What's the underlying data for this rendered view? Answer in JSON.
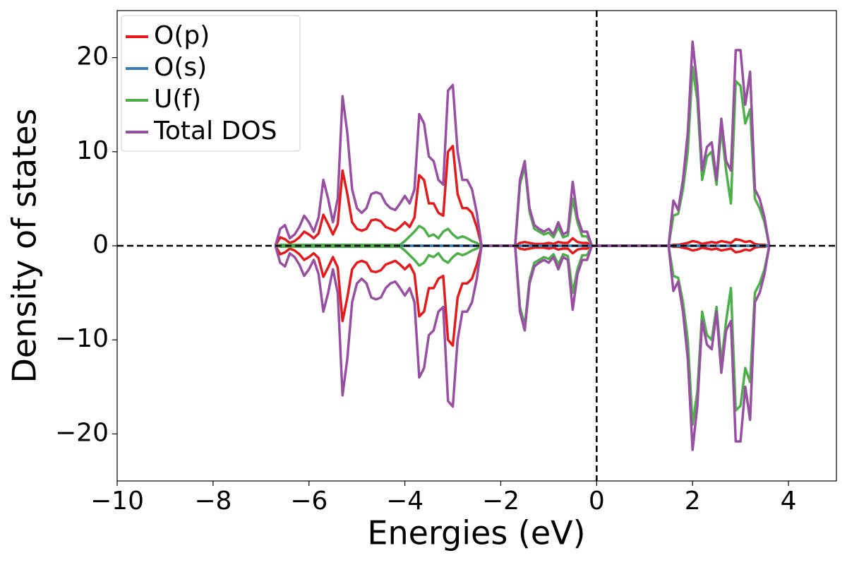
{
  "chart_data": {
    "type": "line",
    "xlabel": "Energies (eV)",
    "ylabel": "Density of states",
    "xlim": [
      -10,
      5
    ],
    "ylim": [
      -25,
      25
    ],
    "xticks": [
      {
        "value": -10,
        "label": "−10"
      },
      {
        "value": -8,
        "label": "−8"
      },
      {
        "value": -6,
        "label": "−6"
      },
      {
        "value": -4,
        "label": "−4"
      },
      {
        "value": -2,
        "label": "−2"
      },
      0,
      2,
      4
    ],
    "yticks": [
      {
        "value": -20,
        "label": "−20"
      },
      {
        "value": -10,
        "label": "−10"
      },
      0,
      10,
      20
    ],
    "vlines": [
      0
    ],
    "hlines": [
      0
    ],
    "legend": "upper left",
    "x": [
      -6.7,
      -6.6,
      -6.5,
      -6.4,
      -6.3,
      -6.2,
      -6.1,
      -6.0,
      -5.9,
      -5.8,
      -5.7,
      -5.6,
      -5.5,
      -5.4,
      -5.3,
      -5.2,
      -5.1,
      -5.0,
      -4.9,
      -4.8,
      -4.7,
      -4.6,
      -4.5,
      -4.4,
      -4.3,
      -4.2,
      -4.1,
      -4.0,
      -3.9,
      -3.8,
      -3.7,
      -3.6,
      -3.5,
      -3.4,
      -3.3,
      -3.2,
      -3.1,
      -3.0,
      -2.9,
      -2.8,
      -2.7,
      -2.6,
      -2.5,
      -2.4,
      -1.7,
      -1.6,
      -1.5,
      -1.4,
      -1.3,
      -1.2,
      -1.1,
      -1.0,
      -0.9,
      -0.8,
      -0.7,
      -0.6,
      -0.5,
      -0.4,
      -0.3,
      -0.2,
      -0.1,
      0,
      1.5,
      1.6,
      1.7,
      1.8,
      1.9,
      2.0,
      2.1,
      2.2,
      2.3,
      2.4,
      2.5,
      2.6,
      2.7,
      2.8,
      2.9,
      3.0,
      3.1,
      3.2,
      3.3,
      3.4,
      3.5,
      3.6
    ],
    "series": [
      {
        "name": "O(p)",
        "color": "#e41a1c",
        "values": [
          0,
          0.9,
          0.7,
          0.3,
          0.5,
          0.9,
          1.5,
          1.2,
          0.8,
          1.3,
          3.3,
          2.3,
          1.2,
          2.3,
          8,
          5.5,
          2.5,
          1.8,
          1.6,
          1.8,
          2.7,
          2.8,
          2.6,
          2,
          1.8,
          1.6,
          2,
          2.5,
          2,
          3,
          7.5,
          7,
          4.5,
          4.5,
          3.5,
          3.2,
          10,
          10.6,
          5.5,
          4,
          4,
          3.5,
          2,
          0,
          0,
          0.3,
          0.4,
          0.3,
          0.2,
          0.2,
          0.2,
          0.3,
          0.2,
          0.4,
          0.3,
          0.3,
          0.8,
          0.4,
          0.3,
          0.3,
          0,
          0,
          0,
          0.1,
          0.1,
          0.2,
          0.3,
          0.5,
          0.4,
          0.2,
          0.3,
          0.4,
          0.3,
          0.5,
          0.4,
          0.3,
          0.7,
          0.6,
          0.4,
          0.5,
          0.2,
          0.1,
          0.1,
          0
        ],
        "values_down": [
          0,
          -0.9,
          -0.7,
          -0.3,
          -0.5,
          -0.9,
          -1.5,
          -1.2,
          -0.8,
          -1.3,
          -3.3,
          -2.3,
          -1.2,
          -2.3,
          -8,
          -5.5,
          -2.5,
          -1.8,
          -1.6,
          -1.8,
          -2.7,
          -2.8,
          -2.6,
          -2,
          -1.8,
          -1.6,
          -2,
          -2.5,
          -2,
          -3,
          -7.5,
          -7,
          -4.5,
          -4.5,
          -3.5,
          -3.2,
          -10,
          -10.6,
          -5.5,
          -4,
          -4,
          -3.5,
          -2,
          0,
          0,
          -0.3,
          -0.4,
          -0.3,
          -0.2,
          -0.2,
          -0.2,
          -0.3,
          -0.2,
          -0.4,
          -0.3,
          -0.3,
          -0.8,
          -0.4,
          -0.3,
          -0.3,
          0,
          0,
          0,
          -0.1,
          -0.1,
          -0.2,
          -0.3,
          -0.5,
          -0.4,
          -0.2,
          -0.3,
          -0.4,
          -0.3,
          -0.5,
          -0.4,
          -0.3,
          -0.7,
          -0.6,
          -0.4,
          -0.5,
          -0.2,
          -0.1,
          -0.1,
          0
        ]
      },
      {
        "name": "O(s)",
        "color": "#377eb8",
        "values": [
          0,
          0,
          0,
          0,
          0,
          0,
          0,
          0,
          0,
          0,
          0,
          0,
          0,
          0,
          0,
          0,
          0,
          0,
          0,
          0,
          0,
          0,
          0,
          0,
          0,
          0,
          0,
          0,
          0,
          0,
          0,
          0,
          0,
          0,
          0,
          0,
          0,
          0,
          0,
          0,
          0,
          0,
          0,
          0,
          0,
          0,
          0,
          0,
          0,
          0,
          0,
          0,
          0,
          0,
          0,
          0,
          0,
          0,
          0,
          0,
          0,
          0,
          0,
          0,
          0,
          0,
          0,
          0,
          0,
          0,
          0,
          0,
          0,
          0,
          0,
          0,
          0,
          0,
          0,
          0,
          0,
          0,
          0,
          0
        ],
        "values_down": [
          0,
          0,
          0,
          0,
          0,
          0,
          0,
          0,
          0,
          0,
          0,
          0,
          0,
          0,
          0,
          0,
          0,
          0,
          0,
          0,
          0,
          0,
          0,
          0,
          0,
          0,
          0,
          0,
          0,
          0,
          0,
          0,
          0,
          0,
          0,
          0,
          0,
          0,
          0,
          0,
          0,
          0,
          0,
          0,
          0,
          0,
          0,
          0,
          0,
          0,
          0,
          0,
          0,
          0,
          0,
          0,
          0,
          0,
          0,
          0,
          0,
          0,
          0,
          0,
          0,
          0,
          0,
          0,
          0,
          0,
          0,
          0,
          0,
          0,
          0,
          0,
          0,
          0,
          0,
          0,
          0,
          0,
          0,
          0
        ]
      },
      {
        "name": "U(f)",
        "color": "#4daf4a",
        "values": [
          0,
          0.1,
          0.1,
          0.1,
          0.1,
          0.1,
          0.1,
          0.1,
          0.1,
          0.1,
          0.1,
          0.1,
          0.1,
          0.1,
          0.1,
          0.1,
          0.1,
          0.1,
          0.1,
          0.1,
          0.1,
          0.1,
          0.1,
          0.1,
          0.1,
          0.1,
          0.1,
          0.5,
          1,
          1.5,
          2.1,
          1.8,
          1,
          1.2,
          0.8,
          1.5,
          1.8,
          1.2,
          0.8,
          1,
          0.8,
          0.5,
          0.3,
          0,
          0,
          6.5,
          8.5,
          3.6,
          1.8,
          1.5,
          1.2,
          1.4,
          0.9,
          2,
          0.9,
          1.1,
          5,
          2.5,
          1,
          1,
          0,
          0,
          0,
          3.2,
          3.4,
          6,
          10,
          19,
          15.5,
          7,
          9.5,
          10,
          6.5,
          12.5,
          8,
          4.5,
          17.5,
          17,
          13,
          14.5,
          5,
          4,
          2.5,
          0
        ],
        "values_down": [
          0,
          -0.1,
          -0.1,
          -0.1,
          -0.1,
          -0.1,
          -0.1,
          -0.1,
          -0.1,
          -0.1,
          -0.1,
          -0.1,
          -0.1,
          -0.1,
          -0.1,
          -0.1,
          -0.1,
          -0.1,
          -0.1,
          -0.1,
          -0.1,
          -0.1,
          -0.1,
          -0.1,
          -0.1,
          -0.1,
          -0.1,
          -0.5,
          -1,
          -1.5,
          -2.1,
          -1.8,
          -1,
          -1.2,
          -0.8,
          -1.5,
          -1.8,
          -1.2,
          -0.8,
          -1,
          -0.8,
          -0.5,
          -0.3,
          0,
          0,
          -6.5,
          -8.5,
          -3.6,
          -1.8,
          -1.5,
          -1.2,
          -1.4,
          -0.9,
          -2,
          -0.9,
          -1.1,
          -5,
          -2.5,
          -1,
          -1,
          0,
          0,
          0,
          -3.2,
          -3.4,
          -6,
          -10,
          -19,
          -15.5,
          -7,
          -9.5,
          -10,
          -6.5,
          -12.5,
          -8,
          -4.5,
          -17.5,
          -17,
          -13,
          -14.5,
          -5,
          -4,
          -2.5,
          0
        ]
      },
      {
        "name": "Total DOS",
        "color": "#984ea3",
        "values": [
          0,
          1.8,
          2.2,
          0.8,
          1.2,
          2,
          3.2,
          2.5,
          1.5,
          3,
          7,
          5,
          2.5,
          5,
          15.9,
          12,
          6,
          4,
          3.5,
          4,
          5.5,
          5.7,
          5.5,
          4.5,
          4,
          3.8,
          4.5,
          5.3,
          4.5,
          6,
          14,
          13,
          9.5,
          9,
          7,
          6.5,
          16.5,
          17.1,
          10,
          7,
          7,
          6,
          3.5,
          0,
          0,
          7,
          9,
          4,
          2.2,
          1.8,
          1.5,
          1.8,
          1.2,
          2.5,
          1.2,
          1.5,
          6.8,
          3,
          1.5,
          1.5,
          0,
          0,
          0,
          4.8,
          3.8,
          7,
          12,
          21.7,
          17,
          8,
          10.5,
          11,
          7,
          13.5,
          9,
          8,
          20.8,
          20.8,
          15,
          18.5,
          6,
          5,
          3,
          0
        ],
        "values_down": [
          0,
          -1.8,
          -2.2,
          -0.8,
          -1.2,
          -2,
          -3.2,
          -2.5,
          -1.5,
          -3,
          -7,
          -5,
          -2.5,
          -5,
          -15.9,
          -12,
          -6,
          -4,
          -3.5,
          -4,
          -5.5,
          -5.7,
          -5.5,
          -4.5,
          -4,
          -3.8,
          -4.5,
          -5.3,
          -4.5,
          -6,
          -14,
          -13,
          -9.5,
          -9,
          -7,
          -6.5,
          -16.5,
          -17.1,
          -10,
          -7,
          -7,
          -6,
          -3.5,
          0,
          0,
          -7,
          -9,
          -4,
          -2.2,
          -1.8,
          -1.5,
          -1.8,
          -1.2,
          -2.5,
          -1.2,
          -1.5,
          -6.8,
          -3,
          -1.5,
          -1.5,
          0,
          0,
          0,
          -4.8,
          -3.8,
          -7,
          -12,
          -21.7,
          -17,
          -8,
          -10.5,
          -11,
          -7,
          -13.5,
          -9,
          -8,
          -20.8,
          -20.8,
          -15,
          -18.5,
          -6,
          -5,
          -3,
          0
        ]
      }
    ]
  }
}
